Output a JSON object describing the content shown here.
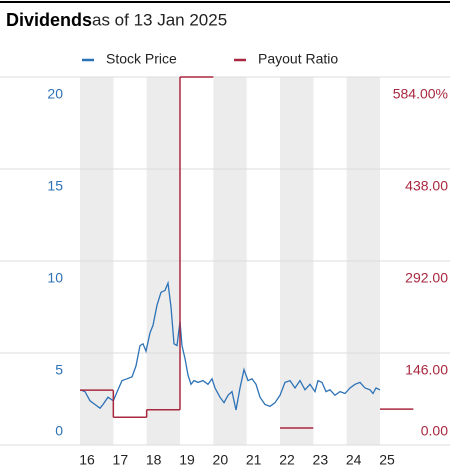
{
  "chart_data": {
    "type": "line",
    "title": "Dividends",
    "subtitle": "as of 13 Jan 2025",
    "xlim": [
      2016,
      2025
    ],
    "xticks": [
      {
        "value": 2016,
        "label": "16"
      },
      {
        "value": 2017,
        "label": "17"
      },
      {
        "value": 2018,
        "label": "18"
      },
      {
        "value": 2019,
        "label": "19"
      },
      {
        "value": 2020,
        "label": "20"
      },
      {
        "value": 2021,
        "label": "21"
      },
      {
        "value": 2022,
        "label": "22"
      },
      {
        "value": 2023,
        "label": "23"
      },
      {
        "value": 2024,
        "label": "24"
      },
      {
        "value": 2025,
        "label": "25"
      }
    ],
    "ylim": [
      0,
      20
    ],
    "yticks": [
      0,
      5,
      10,
      15,
      20
    ],
    "y2lim": [
      0,
      584
    ],
    "y2ticks": [
      {
        "value": 0,
        "label": "0.00"
      },
      {
        "value": 146,
        "label": "146.00"
      },
      {
        "value": 292,
        "label": "292.00"
      },
      {
        "value": 438,
        "label": "438.00"
      },
      {
        "value": 584,
        "label": "584.00%"
      }
    ],
    "grid": true,
    "series": [
      {
        "name": "Stock Price",
        "color": "#2d72b7",
        "x": [
          2016.0,
          2016.15,
          2016.3,
          2016.45,
          2016.6,
          2016.69,
          2016.84,
          2017.0,
          2017.14,
          2017.26,
          2017.41,
          2017.56,
          2017.68,
          2017.8,
          2017.89,
          2017.98,
          2018.1,
          2018.19,
          2018.31,
          2018.43,
          2018.55,
          2018.64,
          2018.73,
          2018.82,
          2018.91,
          2019.0,
          2019.06,
          2019.15,
          2019.24,
          2019.33,
          2019.42,
          2019.54,
          2019.69,
          2019.84,
          2019.96,
          2020.05,
          2020.2,
          2020.32,
          2020.44,
          2020.56,
          2020.68,
          2020.8,
          2020.92,
          2021.04,
          2021.16,
          2021.28,
          2021.4,
          2021.55,
          2021.7,
          2021.85,
          2022.0,
          2022.15,
          2022.3,
          2022.45,
          2022.6,
          2022.75,
          2022.9,
          2023.05,
          2023.14,
          2023.26,
          2023.38,
          2023.5,
          2023.65,
          2023.8,
          2023.95,
          2024.1,
          2024.25,
          2024.4,
          2024.55,
          2024.7,
          2024.79,
          2024.88,
          2025.0
        ],
        "values": [
          3.0,
          2.9,
          2.4,
          2.2,
          2.0,
          2.2,
          2.6,
          2.4,
          3.0,
          3.5,
          3.6,
          3.7,
          4.3,
          5.4,
          5.5,
          5.1,
          6.1,
          6.5,
          7.6,
          8.3,
          8.4,
          8.8,
          7.5,
          5.5,
          5.4,
          6.7,
          5.4,
          4.7,
          3.8,
          3.3,
          3.5,
          3.4,
          3.5,
          3.3,
          3.6,
          3.1,
          2.6,
          2.3,
          2.7,
          2.9,
          1.9,
          3.1,
          4.1,
          3.5,
          3.6,
          3.3,
          2.6,
          2.2,
          2.1,
          2.3,
          2.7,
          3.4,
          3.5,
          3.1,
          3.5,
          3.0,
          3.3,
          2.9,
          3.5,
          3.4,
          2.9,
          3.0,
          2.7,
          2.9,
          2.8,
          3.1,
          3.3,
          3.4,
          3.1,
          3.0,
          2.8,
          3.1,
          3.0
        ]
      },
      {
        "name": "Payout Ratio",
        "color": "#a8283f",
        "axis": "y2",
        "x": [
          2016,
          2017,
          2018,
          2019,
          2020,
          2021,
          2022,
          2023,
          2024,
          2025
        ],
        "values": [
          87,
          44,
          56,
          584,
          null,
          null,
          27,
          null,
          null,
          57
        ]
      }
    ]
  }
}
